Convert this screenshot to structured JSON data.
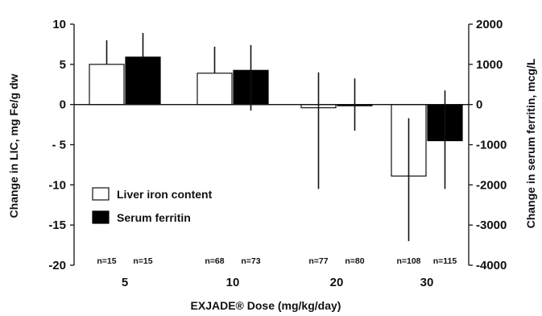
{
  "chart_data": {
    "type": "bar",
    "categories": [
      "5",
      "10",
      "20",
      "30"
    ],
    "xlabel": "EXJADE® Dose (mg/kg/day)",
    "ylabel": "Change in LIC, mg Fe/g dw",
    "y2label": "Change in serum ferritin,  mcg/L",
    "ylim": [
      -20,
      10
    ],
    "y2lim": [
      -4000,
      2000
    ],
    "yticks": [
      "10",
      "5",
      "0",
      "- 5",
      "-10",
      "-15",
      "-20"
    ],
    "y2ticks": [
      "2000",
      "1000",
      "0",
      "-1000",
      "-2000",
      "-3000",
      "-4000"
    ],
    "grid": false,
    "legend_position": "lower-left",
    "series": [
      {
        "name": "Liver iron content",
        "axis": "left",
        "color": "#ffffff",
        "values": [
          5,
          3.9,
          -0.4,
          -8.9
        ],
        "error_upper": [
          8.0,
          7.2,
          4.0,
          -1.7
        ],
        "error_lower": [
          5,
          3.9,
          -10.5,
          -17.0
        ],
        "n_labels": [
          "n=15",
          "n=68",
          "n=77",
          "n=108"
        ]
      },
      {
        "name": "Serum ferritin",
        "axis": "right",
        "color": "#000000",
        "values": [
          1180,
          850,
          0,
          -900
        ],
        "error_upper": [
          1780,
          1480,
          650,
          350
        ],
        "error_lower": [
          1180,
          -150,
          -650,
          -2100
        ],
        "n_labels": [
          "n=15",
          "n=73",
          "n=80",
          "n=115"
        ]
      }
    ]
  }
}
